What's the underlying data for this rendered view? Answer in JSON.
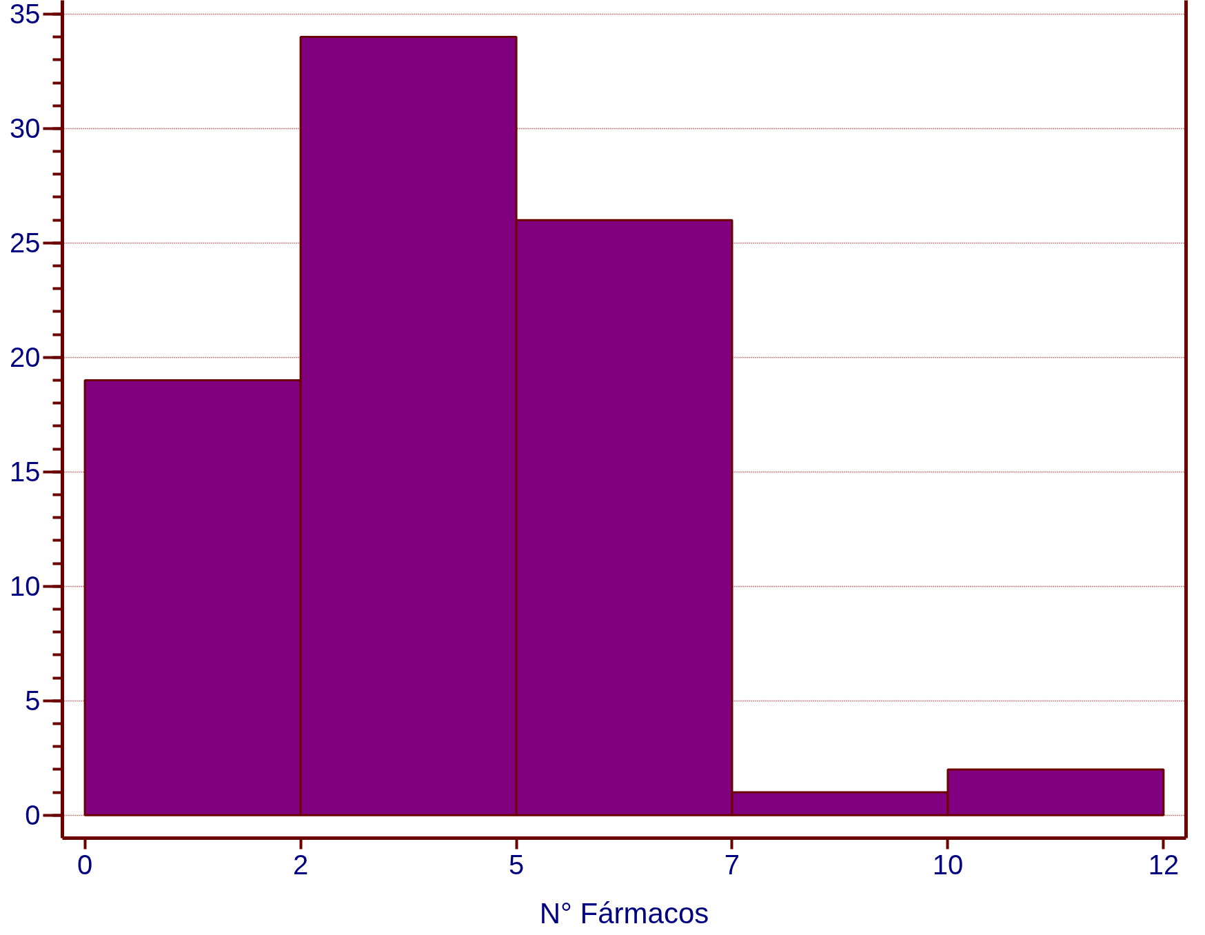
{
  "chart_data": {
    "type": "histogram",
    "xlabel": "N° Fármacos",
    "bins": [
      0,
      2.4,
      4.8,
      7.2,
      9.6,
      12
    ],
    "values": [
      19,
      34,
      26,
      1,
      2
    ],
    "color": "#800080",
    "xlim": [
      -0.25,
      12.25
    ],
    "ylim": [
      -1,
      35.6
    ],
    "xticks": [
      0,
      {
        "value": 2.4,
        "label": "2"
      },
      {
        "value": 4.8,
        "label": "5"
      },
      {
        "value": 7.2,
        "label": "7"
      },
      {
        "value": 9.6,
        "label": "10"
      },
      12
    ],
    "yticks": [
      0,
      5,
      10,
      15,
      20,
      25,
      30,
      35
    ],
    "grid": "y"
  }
}
